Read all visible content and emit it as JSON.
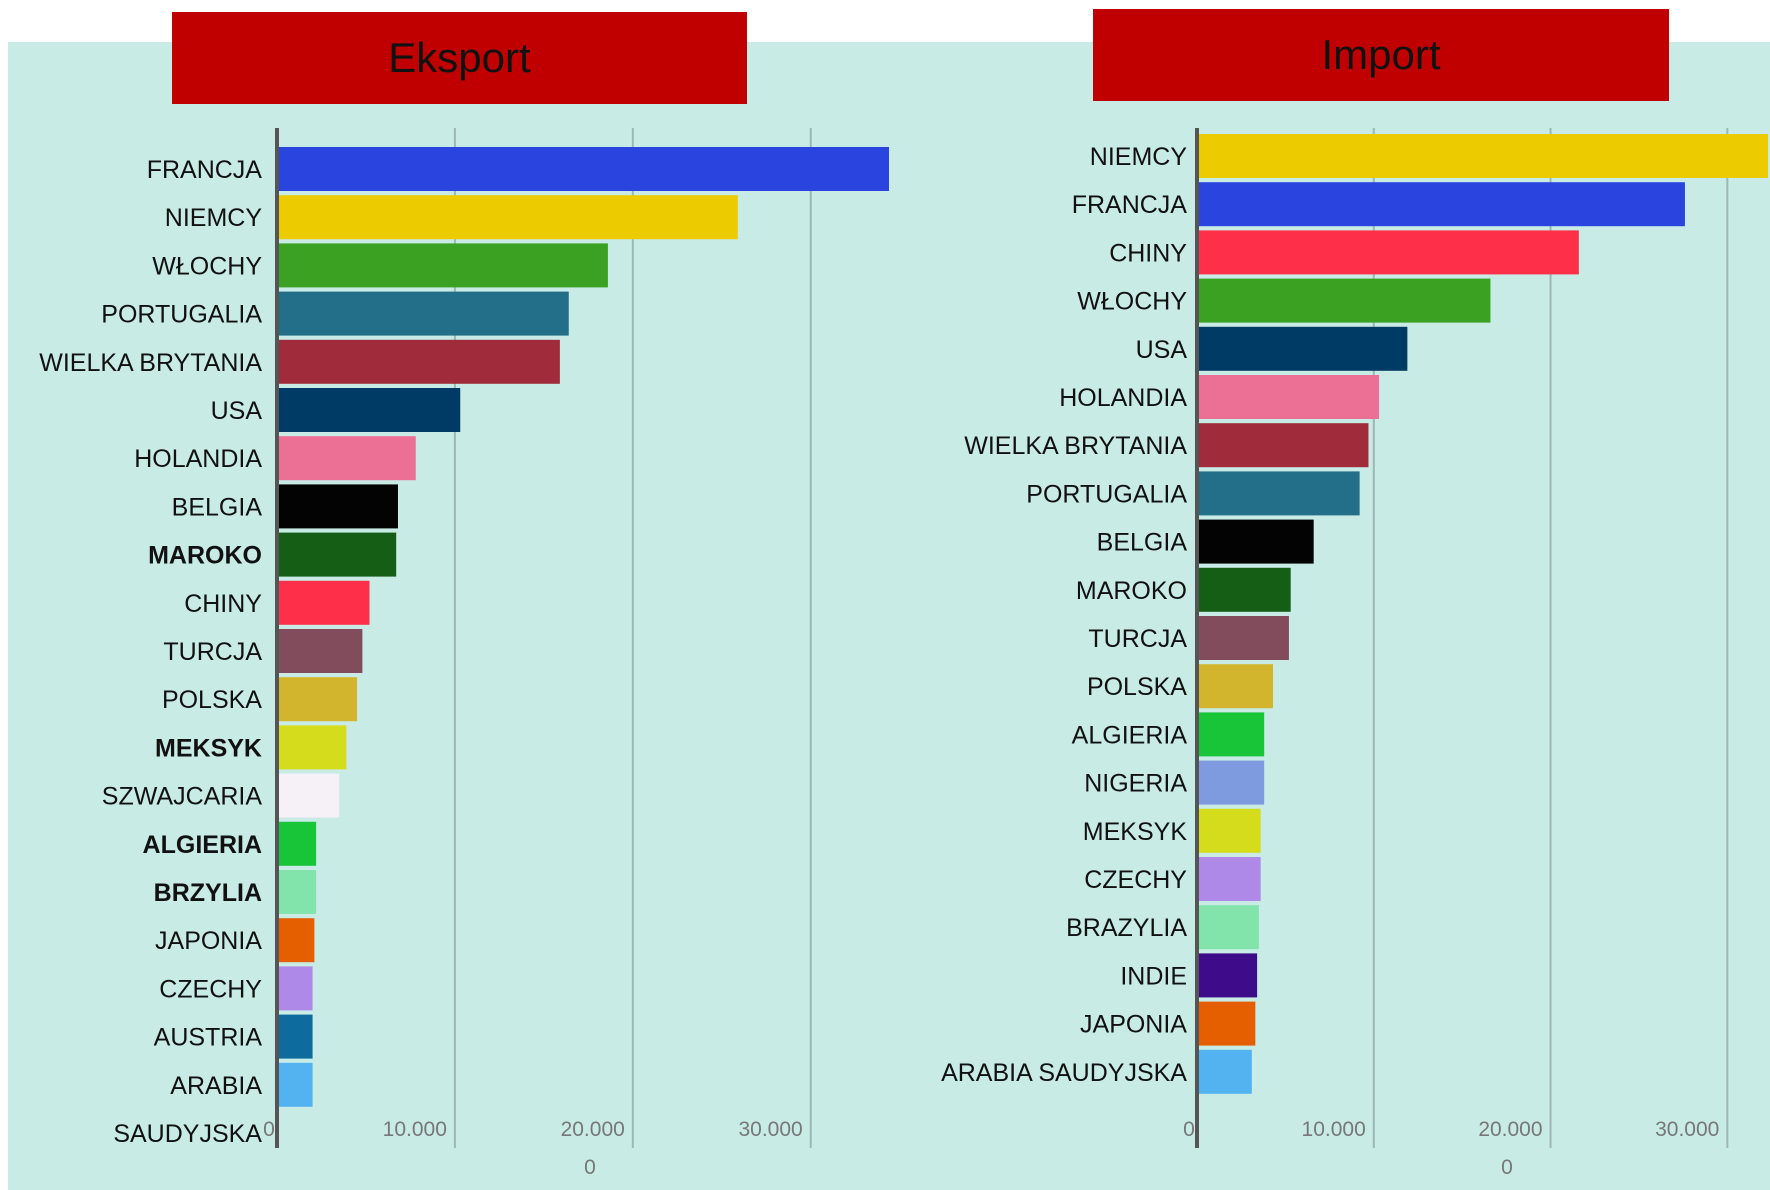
{
  "chart_data": [
    {
      "type": "bar",
      "orientation": "horizontal",
      "title": "Eksport",
      "categories": [
        "FRANCJA",
        "NIEMCY",
        "WŁOCHY",
        "PORTUGALIA",
        "WIELKA BRYTANIA",
        "USA",
        "HOLANDIA",
        "BELGIA",
        "MAROKO",
        "CHINY",
        "TURCJA",
        "POLSKA",
        "MEKSYK",
        "SZWAJCARIA",
        "ALGIERIA",
        "BRZYLIA",
        "JAPONIA",
        "CZECHY",
        "AUSTRIA",
        "ARABIA",
        "SAUDYJSKA"
      ],
      "bold_categories": [
        "MAROKO",
        "MEKSYK",
        "ALGIERIA",
        "BRZYLIA"
      ],
      "values": [
        34400,
        25900,
        18600,
        16400,
        15900,
        10300,
        7800,
        6800,
        6700,
        5200,
        4800,
        4500,
        3900,
        3500,
        2200,
        2200,
        2100,
        2000,
        2000,
        2000,
        null
      ],
      "colors": [
        "#2a44e0",
        "#eccc00",
        "#3aa122",
        "#236f89",
        "#a02c3b",
        "#003b66",
        "#ec7096",
        "#030303",
        "#155e16",
        "#fe2f48",
        "#834c5c",
        "#d2b52d",
        "#d5dc1b",
        "#f6f0f7",
        "#18c438",
        "#82e4ab",
        "#e55f00",
        "#af89e8",
        "#0d6b9e",
        "#53b3f0",
        "#ffffff"
      ],
      "xlim": [
        0,
        34400
      ],
      "ticks": [
        0,
        10000,
        20000,
        30000
      ],
      "tick_labels": [
        "0",
        "10.000",
        "20.000",
        "30.000"
      ],
      "extra_label": "0"
    },
    {
      "type": "bar",
      "orientation": "horizontal",
      "title": "Import",
      "categories": [
        "NIEMCY",
        "FRANCJA",
        "CHINY",
        "WŁOCHY",
        "USA",
        "HOLANDIA",
        "WIELKA BRYTANIA",
        "PORTUGALIA",
        "BELGIA",
        "MAROKO",
        "TURCJA",
        "POLSKA",
        "ALGIERIA",
        "NIGERIA",
        "MEKSYK",
        "CZECHY",
        "BRAZYLIA",
        "INDIE",
        "JAPONIA",
        "ARABIA SAUDYJSKA"
      ],
      "bold_categories": [],
      "values": [
        32300,
        27600,
        21600,
        16600,
        11900,
        10300,
        9700,
        9200,
        6600,
        5300,
        5200,
        4300,
        3800,
        3800,
        3600,
        3600,
        3500,
        3400,
        3300,
        3100
      ],
      "colors": [
        "#eccc00",
        "#2a44e0",
        "#fe2f48",
        "#3aa122",
        "#003b66",
        "#ec7096",
        "#a02c3b",
        "#236f89",
        "#030303",
        "#155e16",
        "#834c5c",
        "#d2b52d",
        "#18c438",
        "#7e9be0",
        "#d5dc1b",
        "#af89e8",
        "#82e4ab",
        "#3e0b8a",
        "#e55f00",
        "#53b3f0"
      ],
      "xlim": [
        0,
        32300
      ],
      "ticks": [
        0,
        10000,
        20000,
        30000
      ],
      "tick_labels": [
        "0",
        "10.000",
        "20.000",
        "30.000"
      ],
      "extra_label": "0"
    }
  ]
}
